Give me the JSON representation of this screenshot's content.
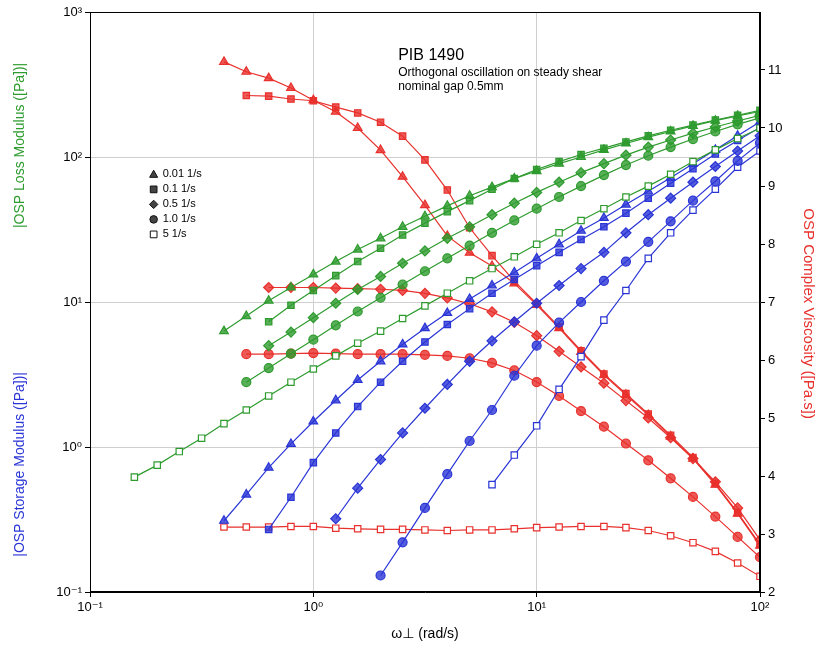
{
  "chart_data": {
    "type": "line",
    "title": "PIB 1490",
    "subtitle": [
      "Orthogonal oscillation on steady shear",
      "nominal gap 0.5mm"
    ],
    "x_label": "ω⊥ (rad/s)",
    "y_labels": [
      {
        "text": "|OSP Loss Modulus ([Pa])|",
        "color": "#2e9b2e"
      },
      {
        "text": "|OSP Storage Modulus ([Pa])|",
        "color": "#2a35d6"
      }
    ],
    "y2_label": {
      "text": "OSP Complex Viscosity ([Pa.s])",
      "color": "#e8302c"
    },
    "log": true,
    "grid": true,
    "legend": "upper left",
    "xlim": [
      0.1,
      100
    ],
    "xticks": [
      {
        "value": 0.1,
        "label": "10⁻¹"
      },
      {
        "value": 1,
        "label": "10⁰"
      },
      {
        "value": 10,
        "label": "10¹"
      },
      {
        "value": 100,
        "label": "10²"
      }
    ],
    "ylim": [
      0.1,
      1000
    ],
    "yticks": [
      {
        "value": 0.1,
        "label": "10⁻¹"
      },
      {
        "value": 1,
        "label": "10⁰"
      },
      {
        "value": 10,
        "label": "10¹"
      },
      {
        "value": 100,
        "label": "10²"
      },
      {
        "value": 1000,
        "label": "10³"
      }
    ],
    "y2lim": [
      2,
      12
    ],
    "y2ticks": [
      2,
      3,
      4,
      5,
      6,
      7,
      8,
      9,
      10,
      11
    ],
    "x": [
      0.158,
      0.2,
      0.251,
      0.316,
      0.398,
      0.501,
      0.631,
      0.794,
      1,
      1.26,
      1.58,
      2,
      2.51,
      3.16,
      3.98,
      5.01,
      6.31,
      7.94,
      10,
      12.6,
      15.8,
      20,
      25.1,
      31.6,
      39.8,
      50.1,
      63.1,
      79.4,
      100
    ],
    "series": [
      {
        "name": "0.01 1/s",
        "color": "#2e9b2e",
        "marker": "triangle",
        "values": [
          null,
          null,
          null,
          null,
          6.3,
          8.0,
          10.2,
          12.6,
          15.5,
          19,
          23,
          27.5,
          33,
          39,
          46,
          54,
          62,
          71,
          80,
          90,
          100,
          112,
          124,
          137,
          150,
          164,
          178,
          192,
          206
        ]
      },
      {
        "name": "0.1 1/s",
        "color": "#2e9b2e",
        "marker": "square",
        "values": [
          null,
          null,
          null,
          null,
          null,
          null,
          7.3,
          9.5,
          12.0,
          15.2,
          19,
          23.5,
          29,
          35,
          42,
          50,
          60,
          71,
          82,
          93,
          104,
          115,
          127,
          140,
          153,
          166,
          180,
          194,
          210
        ]
      },
      {
        "name": "0.5 1/s",
        "color": "#2e9b2e",
        "marker": "diamond",
        "values": [
          null,
          null,
          null,
          null,
          null,
          null,
          5.0,
          6.2,
          7.8,
          9.8,
          12.2,
          15,
          18.5,
          22.5,
          27.5,
          33,
          40,
          48,
          57,
          67,
          78,
          90,
          103,
          117,
          131,
          146,
          161,
          177,
          194
        ]
      },
      {
        "name": "1.0 1/s",
        "color": "#2e9b2e",
        "marker": "circle",
        "values": [
          null,
          null,
          null,
          null,
          null,
          2.8,
          3.5,
          4.4,
          5.5,
          6.9,
          8.6,
          10.7,
          13.2,
          16.3,
          20,
          24.5,
          30,
          36.5,
          44,
          53,
          63,
          75,
          88,
          102,
          117,
          133,
          150,
          168,
          186
        ]
      },
      {
        "name": "5 1/s",
        "color": "#2e9b2e",
        "marker": "open_square",
        "values": [
          0.62,
          0.75,
          0.93,
          1.15,
          1.45,
          1.8,
          2.25,
          2.8,
          3.45,
          4.25,
          5.2,
          6.3,
          7.7,
          9.4,
          11.5,
          14,
          17,
          20.5,
          25,
          30,
          36.5,
          44,
          53,
          63,
          76,
          93,
          112,
          134,
          158
        ]
      },
      {
        "name": "0.01 1/s",
        "color": "#2a35d6",
        "marker": "triangle",
        "values": [
          null,
          null,
          null,
          null,
          0.31,
          0.47,
          0.72,
          1.05,
          1.5,
          2.1,
          2.9,
          3.9,
          5.1,
          6.6,
          8.4,
          10.5,
          13,
          16,
          20,
          25,
          31,
          38,
          47,
          58,
          72,
          90,
          112,
          140,
          175
        ]
      },
      {
        "name": "0.1 1/s",
        "color": "#2a35d6",
        "marker": "square",
        "values": [
          null,
          null,
          null,
          null,
          null,
          null,
          0.27,
          0.45,
          0.78,
          1.25,
          1.9,
          2.8,
          3.9,
          5.3,
          7.0,
          9.0,
          11.5,
          14.3,
          17.8,
          22,
          27,
          33,
          41,
          52,
          66,
          83,
          105,
          130,
          160
        ]
      },
      {
        "name": "0.5 1/s",
        "color": "#2a35d6",
        "marker": "diamond",
        "values": [
          null,
          null,
          null,
          null,
          null,
          null,
          null,
          null,
          null,
          0.32,
          0.52,
          0.82,
          1.25,
          1.85,
          2.7,
          3.9,
          5.4,
          7.3,
          9.8,
          13,
          17,
          22,
          30,
          40,
          52,
          67,
          86,
          110,
          140
        ]
      },
      {
        "name": "1.0 1/s",
        "color": "#2a35d6",
        "marker": "circle",
        "values": [
          null,
          null,
          null,
          null,
          null,
          null,
          null,
          null,
          null,
          null,
          null,
          0.13,
          0.22,
          0.38,
          0.65,
          1.1,
          1.8,
          3.1,
          5.0,
          7.2,
          10,
          14,
          19,
          26,
          36,
          50,
          68,
          94,
          125
        ]
      },
      {
        "name": "5 1/s",
        "color": "#2a35d6",
        "marker": "open_square",
        "values": [
          null,
          null,
          null,
          null,
          null,
          null,
          null,
          null,
          null,
          null,
          null,
          null,
          null,
          null,
          null,
          null,
          0.55,
          0.88,
          1.4,
          2.5,
          4.2,
          7.5,
          12,
          20,
          30,
          43,
          60,
          85,
          110
        ]
      },
      {
        "name": "0.01 1/s",
        "color": "#e8302c",
        "marker": "triangle",
        "axis": "y2",
        "values": [
          null,
          null,
          null,
          null,
          11.14,
          10.97,
          10.86,
          10.69,
          10.48,
          10.28,
          10.0,
          9.62,
          9.16,
          8.67,
          8.14,
          7.85,
          7.62,
          7.32,
          6.95,
          6.55,
          6.14,
          5.74,
          5.4,
          5.05,
          4.68,
          4.3,
          3.85,
          3.35,
          2.8
        ]
      },
      {
        "name": "0.1 1/s",
        "color": "#e8302c",
        "marker": "square",
        "axis": "y2",
        "values": [
          null,
          null,
          null,
          null,
          null,
          10.56,
          10.55,
          10.5,
          10.47,
          10.36,
          10.26,
          10.1,
          9.86,
          9.45,
          8.93,
          8.28,
          7.8,
          7.36,
          6.97,
          6.57,
          6.16,
          5.76,
          5.42,
          5.07,
          4.7,
          4.32,
          3.87,
          3.37,
          2.82
        ]
      },
      {
        "name": "0.5 1/s",
        "color": "#e8302c",
        "marker": "diamond",
        "axis": "y2",
        "values": [
          null,
          null,
          null,
          null,
          null,
          null,
          7.25,
          7.25,
          7.25,
          7.24,
          7.23,
          7.22,
          7.2,
          7.15,
          7.07,
          6.97,
          6.83,
          6.65,
          6.42,
          6.15,
          5.88,
          5.6,
          5.3,
          5.0,
          4.66,
          4.3,
          3.9,
          3.45,
          2.9
        ]
      },
      {
        "name": "1.0 1/s",
        "color": "#e8302c",
        "marker": "circle",
        "axis": "y2",
        "values": [
          null,
          null,
          null,
          null,
          null,
          6.1,
          6.1,
          6.11,
          6.12,
          6.11,
          6.1,
          6.1,
          6.1,
          6.09,
          6.07,
          6.03,
          5.95,
          5.82,
          5.62,
          5.38,
          5.12,
          4.85,
          4.56,
          4.27,
          3.96,
          3.64,
          3.3,
          2.95,
          2.6
        ]
      },
      {
        "name": "5 1/s",
        "color": "#e8302c",
        "marker": "open_square",
        "axis": "y2",
        "values": [
          null,
          null,
          null,
          null,
          3.12,
          3.12,
          3.12,
          3.13,
          3.13,
          3.1,
          3.09,
          3.08,
          3.08,
          3.07,
          3.06,
          3.07,
          3.07,
          3.09,
          3.11,
          3.12,
          3.13,
          3.13,
          3.11,
          3.06,
          2.97,
          2.85,
          2.7,
          2.5,
          2.27
        ]
      }
    ]
  }
}
